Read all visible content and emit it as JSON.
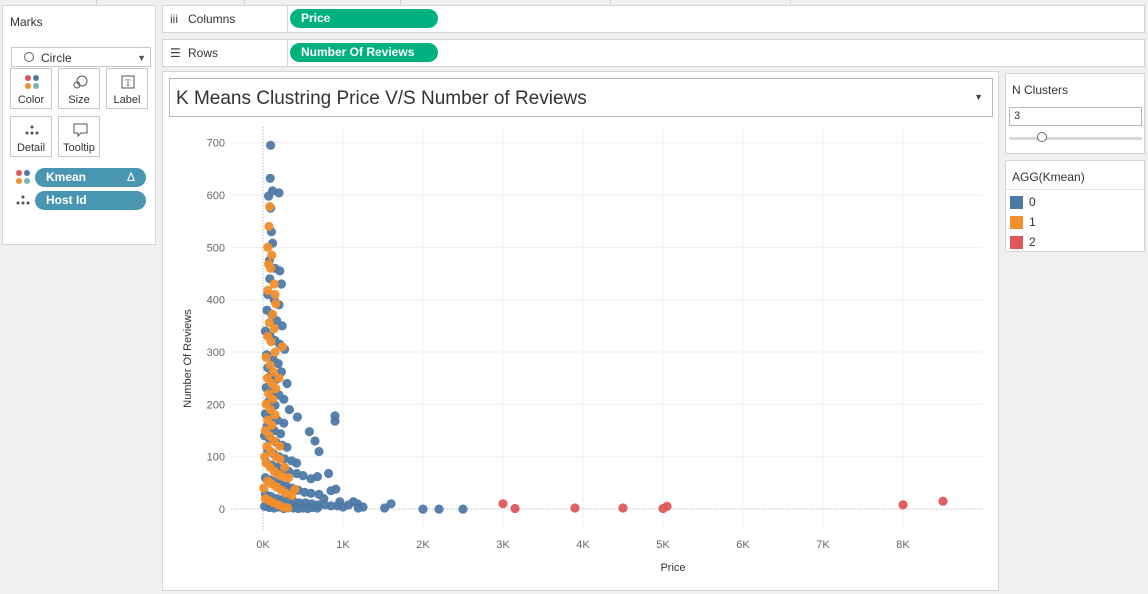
{
  "marks_card": {
    "title": "Marks",
    "mark_type": "Circle",
    "buttons": {
      "color": "Color",
      "size": "Size",
      "label": "Label",
      "detail": "Detail",
      "tooltip": "Tooltip"
    },
    "pills": [
      {
        "label": "Kmean",
        "badge": "Δ",
        "icon": "color-icon"
      },
      {
        "label": "Host Id",
        "icon": "detail-icon"
      }
    ]
  },
  "shelves": {
    "columns": {
      "label": "Columns",
      "pill": "Price"
    },
    "rows": {
      "label": "Rows",
      "pill": "Number Of Reviews"
    }
  },
  "colors": {
    "cluster0": "#4e79a7",
    "cluster1": "#f28e2b",
    "cluster2": "#e15759",
    "pill_blue": "#4996b2",
    "pill_green": "#00b180"
  },
  "chart_data": {
    "type": "scatter",
    "title": "K Means Clustring Price V/S Number of Reviews",
    "xlabel": "Price",
    "ylabel": "Number Of Reviews",
    "xlim": [
      -400,
      9000
    ],
    "ylim": [
      -40,
      730
    ],
    "x_ticks": [
      0,
      1000,
      2000,
      3000,
      4000,
      5000,
      6000,
      7000,
      8000
    ],
    "x_tick_labels": [
      "0K",
      "1K",
      "2K",
      "3K",
      "4K",
      "5K",
      "6K",
      "7K",
      "8K"
    ],
    "y_ticks": [
      0,
      100,
      200,
      300,
      400,
      500,
      600,
      700
    ],
    "y_tick_labels": [
      "0",
      "100",
      "200",
      "300",
      "400",
      "500",
      "600",
      "700"
    ],
    "grid": true,
    "series": [
      {
        "name": "0",
        "color": "#4e79a7",
        "points": [
          [
            95,
            695
          ],
          [
            90,
            632
          ],
          [
            120,
            608
          ],
          [
            200,
            604
          ],
          [
            70,
            598
          ],
          [
            95,
            575
          ],
          [
            105,
            530
          ],
          [
            120,
            508
          ],
          [
            80,
            475
          ],
          [
            150,
            460
          ],
          [
            210,
            455
          ],
          [
            85,
            440
          ],
          [
            230,
            430
          ],
          [
            60,
            410
          ],
          [
            140,
            400
          ],
          [
            200,
            390
          ],
          [
            50,
            380
          ],
          [
            110,
            372
          ],
          [
            170,
            360
          ],
          [
            240,
            350
          ],
          [
            30,
            340
          ],
          [
            90,
            330
          ],
          [
            150,
            322
          ],
          [
            210,
            315
          ],
          [
            270,
            305
          ],
          [
            45,
            295
          ],
          [
            130,
            285
          ],
          [
            190,
            278
          ],
          [
            60,
            270
          ],
          [
            230,
            262
          ],
          [
            100,
            255
          ],
          [
            170,
            248
          ],
          [
            300,
            240
          ],
          [
            40,
            232
          ],
          [
            120,
            224
          ],
          [
            200,
            218
          ],
          [
            260,
            210
          ],
          [
            70,
            205
          ],
          [
            150,
            198
          ],
          [
            330,
            190
          ],
          [
            30,
            182
          ],
          [
            95,
            176
          ],
          [
            180,
            170
          ],
          [
            260,
            164
          ],
          [
            50,
            158
          ],
          [
            140,
            150
          ],
          [
            220,
            144
          ],
          [
            430,
            176
          ],
          [
            900,
            178
          ],
          [
            900,
            168
          ],
          [
            20,
            140
          ],
          [
            80,
            134
          ],
          [
            160,
            128
          ],
          [
            240,
            122
          ],
          [
            300,
            118
          ],
          [
            60,
            112
          ],
          [
            130,
            106
          ],
          [
            200,
            100
          ],
          [
            270,
            96
          ],
          [
            360,
            92
          ],
          [
            700,
            110
          ],
          [
            40,
            90
          ],
          [
            110,
            84
          ],
          [
            180,
            80
          ],
          [
            250,
            76
          ],
          [
            320,
            72
          ],
          [
            420,
            68
          ],
          [
            500,
            64
          ],
          [
            600,
            58
          ],
          [
            680,
            62
          ],
          [
            820,
            68
          ],
          [
            30,
            60
          ],
          [
            90,
            56
          ],
          [
            150,
            52
          ],
          [
            220,
            48
          ],
          [
            290,
            44
          ],
          [
            360,
            40
          ],
          [
            440,
            36
          ],
          [
            520,
            32
          ],
          [
            600,
            30
          ],
          [
            700,
            28
          ],
          [
            850,
            35
          ],
          [
            910,
            38
          ],
          [
            30,
            28
          ],
          [
            100,
            24
          ],
          [
            170,
            20
          ],
          [
            240,
            18
          ],
          [
            310,
            16
          ],
          [
            380,
            14
          ],
          [
            450,
            12
          ],
          [
            530,
            12
          ],
          [
            610,
            10
          ],
          [
            690,
            8
          ],
          [
            770,
            8
          ],
          [
            850,
            6
          ],
          [
            930,
            6
          ],
          [
            1000,
            4
          ],
          [
            1070,
            8
          ],
          [
            1130,
            14
          ],
          [
            1190,
            2
          ],
          [
            1250,
            4
          ],
          [
            20,
            5
          ],
          [
            80,
            3
          ],
          [
            140,
            2
          ],
          [
            200,
            4
          ],
          [
            260,
            1
          ],
          [
            320,
            3
          ],
          [
            380,
            2
          ],
          [
            440,
            1
          ],
          [
            500,
            2
          ],
          [
            560,
            1
          ],
          [
            620,
            3
          ],
          [
            680,
            2
          ],
          [
            1520,
            2
          ],
          [
            1600,
            10
          ],
          [
            2000,
            0
          ],
          [
            2200,
            0
          ],
          [
            2500,
            0
          ],
          [
            650,
            130
          ],
          [
            580,
            148
          ],
          [
            420,
            88
          ],
          [
            760,
            20
          ],
          [
            960,
            14
          ],
          [
            1180,
            10
          ]
        ]
      },
      {
        "name": "1",
        "color": "#f28e2b",
        "points": [
          [
            85,
            578
          ],
          [
            75,
            540
          ],
          [
            60,
            500
          ],
          [
            110,
            485
          ],
          [
            70,
            468
          ],
          [
            95,
            460
          ],
          [
            140,
            430
          ],
          [
            60,
            418
          ],
          [
            160,
            392
          ],
          [
            120,
            372
          ],
          [
            80,
            356
          ],
          [
            140,
            345
          ],
          [
            60,
            330
          ],
          [
            100,
            320
          ],
          [
            150,
            300
          ],
          [
            40,
            290
          ],
          [
            90,
            275
          ],
          [
            130,
            262
          ],
          [
            55,
            250
          ],
          [
            110,
            240
          ],
          [
            160,
            230
          ],
          [
            70,
            220
          ],
          [
            120,
            210
          ],
          [
            40,
            200
          ],
          [
            95,
            190
          ],
          [
            150,
            180
          ],
          [
            60,
            170
          ],
          [
            110,
            160
          ],
          [
            30,
            150
          ],
          [
            80,
            140
          ],
          [
            140,
            130
          ],
          [
            50,
            120
          ],
          [
            100,
            110
          ],
          [
            160,
            100
          ],
          [
            210,
            95
          ],
          [
            40,
            88
          ],
          [
            90,
            80
          ],
          [
            140,
            72
          ],
          [
            190,
            66
          ],
          [
            250,
            62
          ],
          [
            320,
            60
          ],
          [
            60,
            54
          ],
          [
            110,
            48
          ],
          [
            170,
            42
          ],
          [
            230,
            36
          ],
          [
            290,
            30
          ],
          [
            360,
            26
          ],
          [
            30,
            20
          ],
          [
            80,
            16
          ],
          [
            130,
            12
          ],
          [
            190,
            8
          ],
          [
            250,
            4
          ],
          [
            310,
            2
          ],
          [
            10,
            40
          ],
          [
            20,
            100
          ],
          [
            210,
            120
          ],
          [
            270,
            80
          ],
          [
            400,
            38
          ],
          [
            200,
            250
          ],
          [
            240,
            310
          ],
          [
            150,
            410
          ]
        ]
      },
      {
        "name": "2",
        "color": "#e15759",
        "points": [
          [
            3000,
            10
          ],
          [
            3150,
            1
          ],
          [
            3900,
            2
          ],
          [
            4500,
            2
          ],
          [
            5000,
            1
          ],
          [
            5050,
            5
          ],
          [
            8000,
            8
          ],
          [
            8500,
            15
          ]
        ]
      }
    ]
  },
  "params": {
    "title": "N Clusters",
    "value": "3",
    "slider_fraction": 0.25
  },
  "legend": {
    "title": "AGG(Kmean)",
    "items": [
      {
        "label": "0",
        "color": "#4e79a7"
      },
      {
        "label": "1",
        "color": "#f28e2b"
      },
      {
        "label": "2",
        "color": "#e15759"
      }
    ]
  }
}
